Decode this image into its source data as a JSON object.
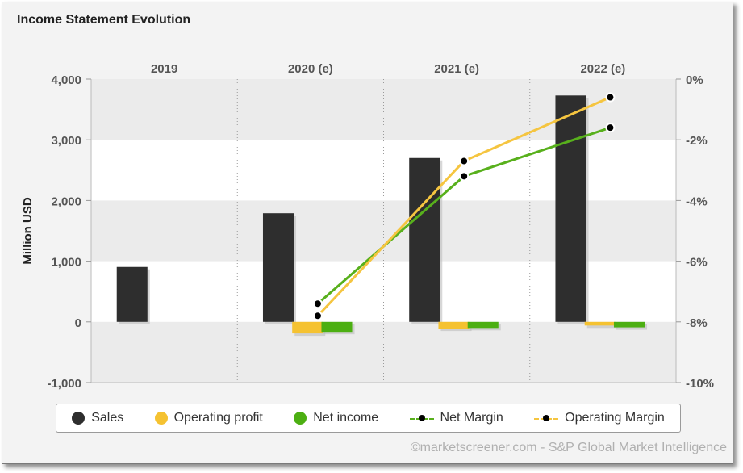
{
  "title": "Income Statement Evolution",
  "credit": "©marketscreener.com - S&P Global Market Intelligence",
  "colors": {
    "sales": "#2e2e2e",
    "operating_profit": "#f5c231",
    "net_income": "#4caf12",
    "net_margin_line": "#58b01c",
    "operating_margin_line": "#f5c540"
  },
  "legend": [
    {
      "label": "Sales",
      "kind": "dot",
      "color": "#2e2e2e"
    },
    {
      "label": "Operating profit",
      "kind": "dot",
      "color": "#f5c231"
    },
    {
      "label": "Net income",
      "kind": "dot",
      "color": "#4caf12"
    },
    {
      "label": "Net Margin",
      "kind": "line",
      "color": "#58b01c"
    },
    {
      "label": "Operating Margin",
      "kind": "line",
      "color": "#f5c540"
    }
  ],
  "chart_data": {
    "type": "bar",
    "title": "Income Statement Evolution",
    "categories": [
      "2019",
      "2020 (e)",
      "2021 (e)",
      "2022 (e)"
    ],
    "ylabel": "Million USD",
    "ylim": [
      -1000,
      4000
    ],
    "yticks": [
      -1000,
      0,
      1000,
      2000,
      3000,
      4000
    ],
    "ytick_labels": [
      "-1,000",
      "0",
      "1,000",
      "2,000",
      "3,000",
      "4,000"
    ],
    "y2lim": [
      -10,
      0
    ],
    "y2ticks": [
      -10,
      -8,
      -6,
      -4,
      -2,
      0
    ],
    "y2tick_labels": [
      "-10%",
      "-8%",
      "-6%",
      "-4%",
      "-2%",
      "0%"
    ],
    "series": [
      {
        "name": "Sales",
        "type": "bar",
        "axis": "left",
        "values": [
          905,
          1790,
          2700,
          3730
        ]
      },
      {
        "name": "Operating profit",
        "type": "bar",
        "axis": "left",
        "values": [
          null,
          -190,
          -110,
          -60
        ]
      },
      {
        "name": "Net income",
        "type": "bar",
        "axis": "left",
        "values": [
          null,
          -165,
          -100,
          -90
        ]
      },
      {
        "name": "Net Margin",
        "type": "line",
        "axis": "right",
        "values": [
          null,
          -7.4,
          -3.2,
          -1.6
        ]
      },
      {
        "name": "Operating Margin",
        "type": "line",
        "axis": "right",
        "values": [
          null,
          -7.8,
          -2.7,
          -0.6
        ]
      }
    ],
    "grid": true,
    "legend_position": "bottom"
  }
}
